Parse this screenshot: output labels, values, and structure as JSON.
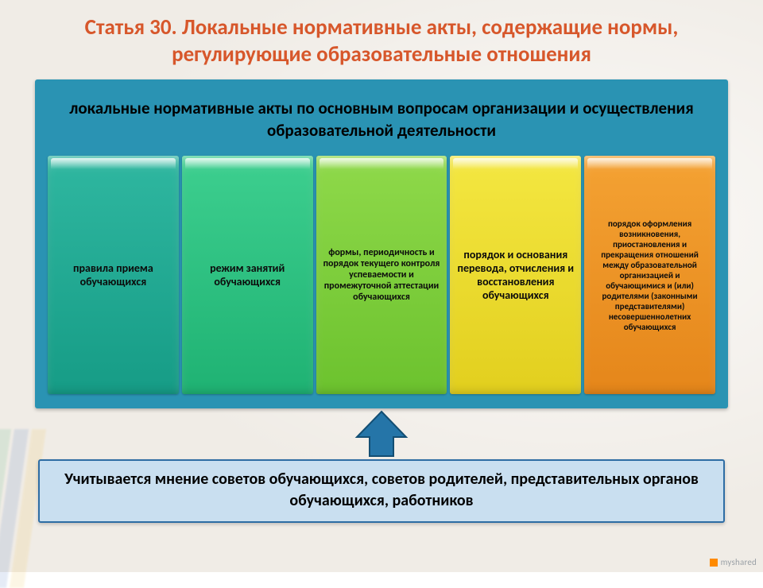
{
  "title": "Статья 30. Локальные нормативные акты, содержащие нормы, регулирующие образовательные отношения",
  "title_color": "#d7572b",
  "title_fontsize": 27,
  "panel": {
    "bg": "#2a93b3",
    "border": "#2a6f86",
    "heading": "локальные нормативные акты по основным вопросам организации и осуществления образовательной деятельности",
    "heading_fontsize": 21
  },
  "columns": [
    {
      "label": "правила приема обучающихся",
      "bg_top": "#2fb7a0",
      "bg_bot": "#169c86",
      "fontsize": 14
    },
    {
      "label": "режим занятий обучающихся",
      "bg_top": "#3dcf8f",
      "bg_bot": "#1fb273",
      "fontsize": 14
    },
    {
      "label": "формы, периодичность и порядок текущего контроля успеваемости и промежуточной аттестации обучающихся",
      "bg_top": "#8fd94a",
      "bg_bot": "#6cc22e",
      "fontsize": 12
    },
    {
      "label": "порядок и основания перевода, отчисления и восстановления обучающихся",
      "bg_top": "#f4e741",
      "bg_bot": "#e2cf1e",
      "fontsize": 14
    },
    {
      "label": "порядок оформления возникновения, приостановления и прекращения отношений между образовательной организацией и обучающимися и (или) родителями (законными представителями) несовершеннолетних обучающихся",
      "bg_top": "#f4a233",
      "bg_bot": "#e5861a",
      "fontsize": 11
    }
  ],
  "column_height": 300,
  "arrow": {
    "fill": "#2575a8",
    "stroke": "#134e73",
    "width": 70,
    "height": 60
  },
  "footer": {
    "text": "Учитывается мнение советов обучающихся, советов родителей, представительных органов обучающихся, работников",
    "bg": "#c9dff0",
    "border": "#2e6da4",
    "fontsize": 20
  },
  "watermark": "myshared"
}
